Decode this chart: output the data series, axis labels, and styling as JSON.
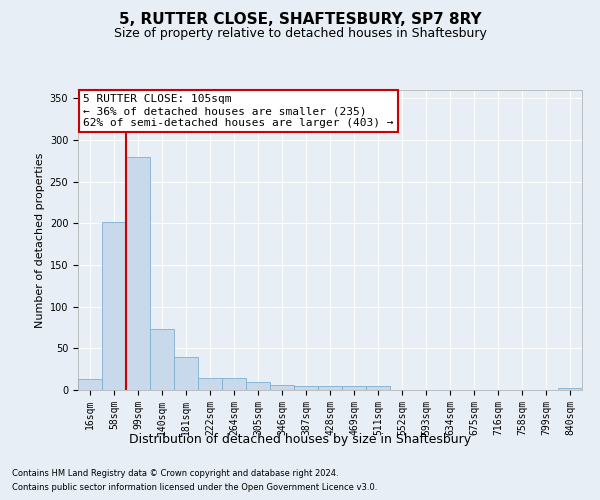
{
  "title1": "5, RUTTER CLOSE, SHAFTESBURY, SP7 8RY",
  "title2": "Size of property relative to detached houses in Shaftesbury",
  "xlabel": "Distribution of detached houses by size in Shaftesbury",
  "ylabel": "Number of detached properties",
  "footnote1": "Contains HM Land Registry data © Crown copyright and database right 2024.",
  "footnote2": "Contains public sector information licensed under the Open Government Licence v3.0.",
  "bin_labels": [
    "16sqm",
    "58sqm",
    "99sqm",
    "140sqm",
    "181sqm",
    "222sqm",
    "264sqm",
    "305sqm",
    "346sqm",
    "387sqm",
    "428sqm",
    "469sqm",
    "511sqm",
    "552sqm",
    "593sqm",
    "634sqm",
    "675sqm",
    "716sqm",
    "758sqm",
    "799sqm",
    "840sqm"
  ],
  "bar_values": [
    13,
    202,
    280,
    73,
    40,
    14,
    14,
    10,
    6,
    5,
    5,
    5,
    5,
    0,
    0,
    0,
    0,
    0,
    0,
    0,
    2
  ],
  "bar_color": "#c9d9ec",
  "bar_edgecolor": "#7fafd0",
  "vline_color": "#cc0000",
  "annotation_text": "5 RUTTER CLOSE: 105sqm\n← 36% of detached houses are smaller (235)\n62% of semi-detached houses are larger (403) →",
  "annotation_box_facecolor": "#ffffff",
  "annotation_box_edgecolor": "#cc0000",
  "ylim": [
    0,
    360
  ],
  "yticks": [
    0,
    50,
    100,
    150,
    200,
    250,
    300,
    350
  ],
  "background_color": "#e8eef5",
  "grid_color": "#ffffff",
  "title1_fontsize": 11,
  "title2_fontsize": 9,
  "xlabel_fontsize": 9,
  "ylabel_fontsize": 8,
  "annotation_fontsize": 8,
  "tick_fontsize": 7,
  "footnote_fontsize": 6
}
